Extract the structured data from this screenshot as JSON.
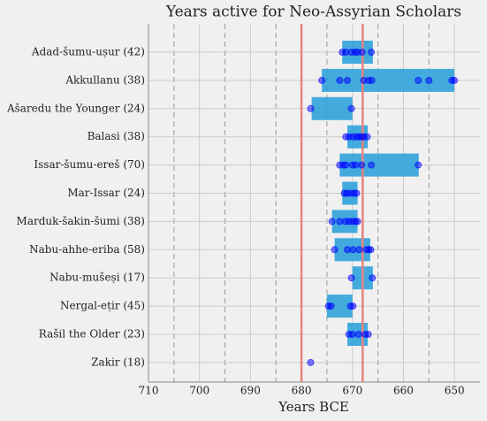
{
  "chart_data": {
    "type": "range-bar",
    "title": "Years active for Neo-Assyrian Scholars",
    "x_label": "Years BCE",
    "categories": [
      "Adad-šumu-uṣur (42)",
      "Akkullanu (38)",
      "Ašaredu the Younger (24)",
      "Balasi (38)",
      "Issar-šumu-ereš (70)",
      "Mar-Issar (24)",
      "Marduk-šakin-šumi (38)",
      "Nabu-ahhe-eriba (58)",
      "Nabu-mušeṣi (17)",
      "Nergal-eṭir (45)",
      "Rašil the Older (23)",
      "Zakir (18)"
    ],
    "bar_color": "#30a2da",
    "point_color": "#0000ff",
    "ranges": [
      [
        672,
        666
      ],
      [
        676,
        650
      ],
      [
        678,
        670
      ],
      [
        671,
        667
      ],
      [
        672.5,
        657
      ],
      [
        672,
        669
      ],
      [
        674,
        669
      ],
      [
        673.5,
        666.5
      ],
      [
        670,
        666
      ],
      [
        675,
        670
      ],
      [
        671,
        667
      ],
      [
        678.2,
        678.2
      ]
    ],
    "points": [
      [
        672,
        671.3,
        670.2,
        669.5,
        669,
        668.1,
        666.3
      ],
      [
        676,
        672.5,
        671,
        667.8,
        666.8,
        666.2,
        657.1,
        655,
        650.5,
        650
      ],
      [
        678.2,
        670.2
      ],
      [
        671.3,
        670.7,
        669.9,
        669.2,
        668.7,
        668.2,
        667.8,
        667.1
      ],
      [
        672.5,
        671.8,
        671.3,
        670,
        669.4,
        668.2,
        666.3,
        657.1
      ],
      [
        671.6,
        671.1,
        670.4,
        669.7,
        669.2
      ],
      [
        674,
        672.5,
        671.4,
        670.7,
        670,
        669.4,
        669
      ],
      [
        673.5,
        671,
        669.9,
        668.7,
        667.3,
        666.8,
        666.4
      ],
      [
        670.2,
        666.1
      ],
      [
        674.7,
        674.2,
        670.4,
        669.9
      ],
      [
        670.7,
        670,
        668.8,
        667.5,
        666.9
      ],
      [
        678.2
      ]
    ],
    "reference_lines": [
      680,
      668
    ],
    "reference_color": "#e8827e",
    "xlim": [
      710,
      645
    ],
    "xticks": [
      710,
      700,
      690,
      680,
      670,
      660,
      650
    ],
    "xminor": [
      705,
      695,
      685,
      675,
      665,
      655
    ],
    "grid": true
  }
}
